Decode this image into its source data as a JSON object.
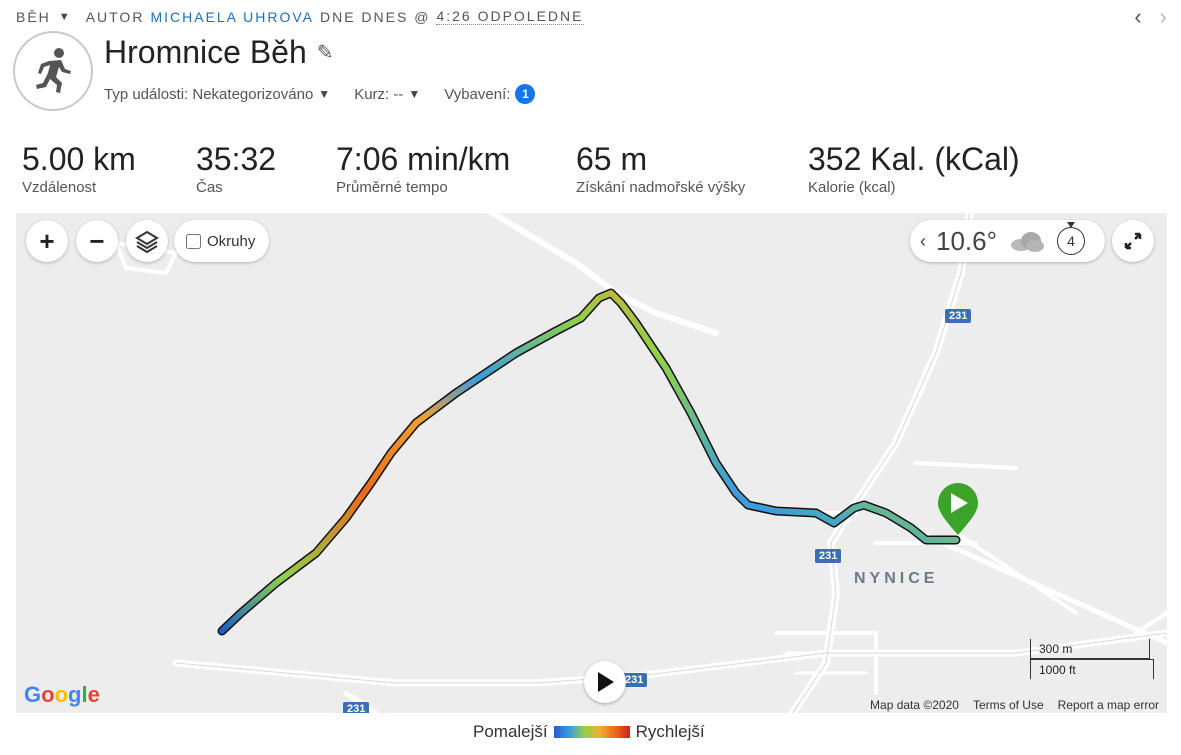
{
  "breadcrumb": {
    "activity_type": "BĚH",
    "author_prefix": "AUTOR",
    "author": "MICHAELA UHROVA",
    "date_prefix": "DNE DNES @",
    "time": "4:26 ODPOLEDNE"
  },
  "header": {
    "title": "Hromnice Běh",
    "event_type_label": "Typ události: Nekategorizováno",
    "course_label": "Kurz: --",
    "gear_label": "Vybavení:",
    "gear_count": "1"
  },
  "stats": [
    {
      "value": "5.00 km",
      "label": "Vzdálenost"
    },
    {
      "value": "35:32",
      "label": "Čas"
    },
    {
      "value": "7:06 min/km",
      "label": "Průměrné tempo"
    },
    {
      "value": "65 m",
      "label": "Získání nadmořské výšky"
    },
    {
      "value": "352 Kal. (kCal)",
      "label": "Kalorie (kcal)"
    }
  ],
  "map": {
    "zoom_in": "+",
    "zoom_out": "−",
    "laps_label": "Okruhy",
    "temperature": "10.6°",
    "wind": "4",
    "town": "NYNICE",
    "road_badges": [
      "231",
      "231",
      "231",
      "231"
    ],
    "scale_metric": "300 m",
    "scale_imperial": "1000 ft",
    "google": "Google",
    "map_data": "Map data ©2020",
    "terms": "Terms of Use",
    "report": "Report a map error"
  },
  "legend": {
    "slower": "Pomalejší",
    "faster": "Rychlejší"
  },
  "colors": {
    "accent": "#1a73e8",
    "author_link": "#1f6fb5",
    "start_marker": "#3ba22a",
    "route_badge": "#3a6fb3"
  }
}
